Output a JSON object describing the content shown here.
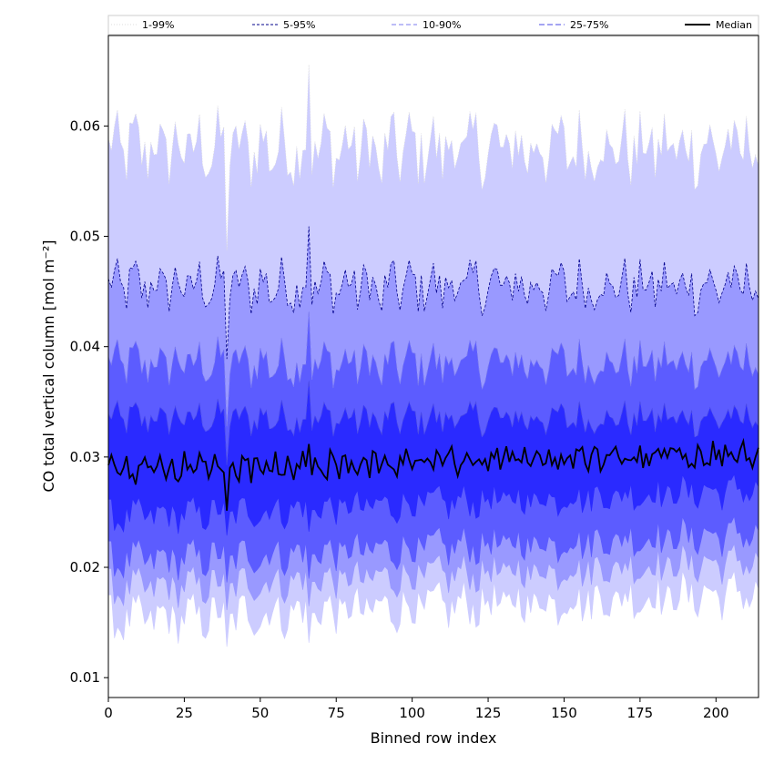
{
  "chart_data": {
    "type": "area",
    "title": "",
    "xlabel": "Binned row index",
    "ylabel": "CO total vertical column [mol m⁻²]",
    "xlim": [
      0,
      214
    ],
    "ylim": [
      0.0082,
      0.0682
    ],
    "x_ticks": [
      0,
      25,
      50,
      75,
      100,
      125,
      150,
      175,
      200
    ],
    "y_ticks": [
      0.01,
      0.02,
      0.03,
      0.04,
      0.05,
      0.06
    ],
    "grid": false,
    "legend_position": "top",
    "x_step": 1,
    "n_points": 215,
    "series": [
      {
        "name": "1-99%",
        "color": "#ccccff",
        "line_color": "#dddddd",
        "dash": "1,2",
        "base": 0.058,
        "amp": 0.0035,
        "low_base": 0.0152,
        "low_amp": 0.0022
      },
      {
        "name": "5-95%",
        "color": "#9999ff",
        "line_color": "#00008b",
        "dash": "3,2",
        "base": 0.0455,
        "amp": 0.0025,
        "low_base": 0.018,
        "low_amp": 0.0018
      },
      {
        "name": "10-90%",
        "color": "#5c5cff",
        "line_color": "#7b7bef",
        "dash": "5,3",
        "base": 0.0385,
        "amp": 0.0022,
        "low_base": 0.0205,
        "low_amp": 0.0018
      },
      {
        "name": "25-75%",
        "color": "#2a2aff",
        "line_color": "#4a4ae6",
        "dash": "6,3",
        "base": 0.0335,
        "amp": 0.0016,
        "low_base": 0.0245,
        "low_amp": 0.0016
      },
      {
        "name": "Median",
        "color": "#000000",
        "line_color": "#000000",
        "dash": "",
        "base": 0.0289,
        "amp": 0.0013
      }
    ]
  }
}
